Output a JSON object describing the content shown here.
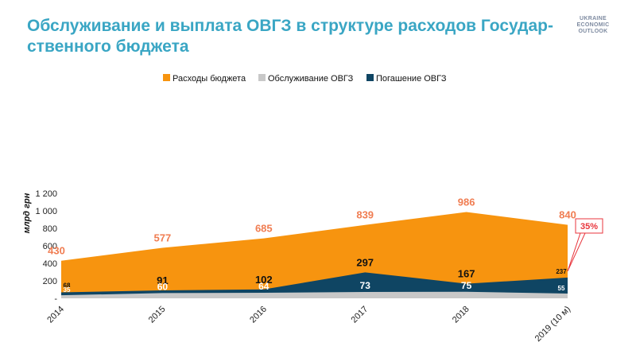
{
  "title": "Обслуживание и выплата ОВГЗ в структуре расходов Государ-ственного бюджета",
  "brand": [
    "UKRAINE",
    "ECONOMIC",
    "OUTLOOK"
  ],
  "colors": {
    "title": "#3aa6c4",
    "budget": "#f7940f",
    "service": "#c8c8c8",
    "repayment": "#0f4563",
    "budget_label": "#f07d52",
    "callout": "#e8353c"
  },
  "chart_data": {
    "type": "area",
    "categories": [
      "2014",
      "2015",
      "2016",
      "2017",
      "2018",
      "2019 (10 м)"
    ],
    "ylabel": "млрд грн",
    "ylim": [
      0,
      1200
    ],
    "yticks": [
      0,
      200,
      400,
      600,
      800,
      1000,
      1200
    ],
    "ytick_labels": [
      "-",
      "200",
      "400",
      "600",
      "800",
      "1 000",
      "1 200"
    ],
    "series": [
      {
        "key": "budget",
        "name": "Расходы бюджета",
        "values": [
          430,
          577,
          685,
          839,
          986,
          840
        ],
        "labels": [
          "430",
          "577",
          "685",
          "839",
          "986",
          "840"
        ]
      },
      {
        "key": "service",
        "name": "Обслуживание ОВГЗ",
        "values": [
          35,
          60,
          64,
          73,
          75,
          55
        ],
        "labels": [
          "35",
          "60",
          "64",
          "73",
          "75",
          "55"
        ]
      },
      {
        "key": "repayment",
        "name": "Погашение ОВГЗ",
        "values": [
          68,
          91,
          102,
          297,
          167,
          237
        ],
        "labels": [
          "68",
          "91",
          "102",
          "297",
          "167",
          "237"
        ]
      }
    ],
    "annotations": [
      {
        "text": "35%",
        "category": "2019 (10 м)"
      }
    ]
  }
}
